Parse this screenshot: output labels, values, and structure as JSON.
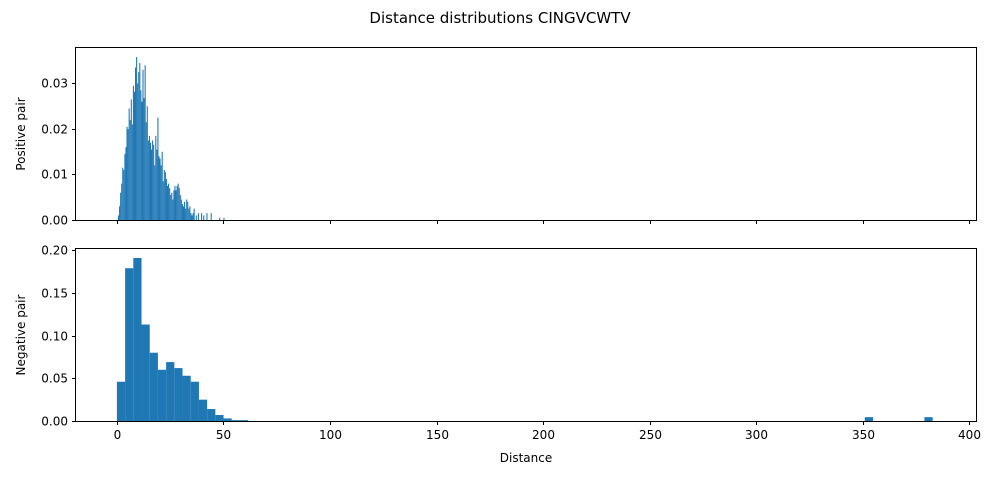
{
  "chart_data": {
    "title": "Distance distributions CINGVCWTV",
    "xlabel": "Distance",
    "panels": [
      {
        "type": "bar",
        "ylabel": "Positive pair",
        "xlim": [
          -19.2,
          403.2
        ],
        "ylim": [
          0,
          0.0378
        ],
        "yticks": [
          0.0,
          0.01,
          0.02,
          0.03
        ],
        "ytick_labels": [
          "0.00",
          "0.01",
          "0.02",
          "0.03"
        ],
        "bin_width": 0.5,
        "bins": [
          [
            0.5,
            0.001
          ],
          [
            1.0,
            0.003
          ],
          [
            1.5,
            0.006
          ],
          [
            2.0,
            0.008
          ],
          [
            2.5,
            0.0115
          ],
          [
            3.0,
            0.011
          ],
          [
            3.5,
            0.0145
          ],
          [
            4.0,
            0.016
          ],
          [
            4.5,
            0.0205
          ],
          [
            5.0,
            0.02
          ],
          [
            5.5,
            0.0245
          ],
          [
            6.0,
            0.022
          ],
          [
            6.5,
            0.0265
          ],
          [
            7.0,
            0.021
          ],
          [
            7.5,
            0.0295
          ],
          [
            8.0,
            0.0282
          ],
          [
            8.5,
            0.0335
          ],
          [
            9.0,
            0.0358
          ],
          [
            9.5,
            0.03
          ],
          [
            10.0,
            0.0325
          ],
          [
            10.5,
            0.0345
          ],
          [
            11.0,
            0.0285
          ],
          [
            11.5,
            0.026
          ],
          [
            12.0,
            0.033
          ],
          [
            12.5,
            0.0268
          ],
          [
            13.0,
            0.034
          ],
          [
            13.5,
            0.0215
          ],
          [
            14.0,
            0.025
          ],
          [
            14.5,
            0.0175
          ],
          [
            15.0,
            0.0185
          ],
          [
            15.5,
            0.017
          ],
          [
            16.0,
            0.0155
          ],
          [
            16.5,
            0.0175
          ],
          [
            17.0,
            0.0165
          ],
          [
            17.5,
            0.012
          ],
          [
            18.0,
            0.0185
          ],
          [
            18.5,
            0.0155
          ],
          [
            19.0,
            0.0225
          ],
          [
            19.5,
            0.014
          ],
          [
            20.0,
            0.0135
          ],
          [
            20.5,
            0.012
          ],
          [
            21.0,
            0.015
          ],
          [
            21.5,
            0.0085
          ],
          [
            22.0,
            0.011
          ],
          [
            22.5,
            0.0105
          ],
          [
            23.0,
            0.009
          ],
          [
            23.5,
            0.0075
          ],
          [
            24.0,
            0.008
          ],
          [
            24.5,
            0.007
          ],
          [
            25.0,
            0.0055
          ],
          [
            25.5,
            0.006
          ],
          [
            26.0,
            0.0045
          ],
          [
            26.5,
            0.0065
          ],
          [
            27.0,
            0.0075
          ],
          [
            27.5,
            0.0065
          ],
          [
            28.0,
            0.0075
          ],
          [
            28.5,
            0.008
          ],
          [
            29.0,
            0.007
          ],
          [
            29.5,
            0.0055
          ],
          [
            30.0,
            0.0045
          ],
          [
            30.5,
            0.0035
          ],
          [
            31.0,
            0.003
          ],
          [
            31.5,
            0.004
          ],
          [
            32.0,
            0.0025
          ],
          [
            32.5,
            0.0045
          ],
          [
            33.0,
            0.004
          ],
          [
            33.5,
            0.0025
          ],
          [
            34.0,
            0.003
          ],
          [
            34.5,
            0.0015
          ],
          [
            35.0,
            0.001
          ],
          [
            35.5,
            0.0015
          ],
          [
            36.0,
            0.0025
          ],
          [
            37.0,
            0.001
          ],
          [
            38.0,
            0.0015
          ],
          [
            39.5,
            0.0015
          ],
          [
            40.5,
            0.001
          ],
          [
            42.0,
            0.0015
          ],
          [
            44.0,
            0.0015
          ],
          [
            48.0,
            0.0005
          ],
          [
            50.0,
            0.0005
          ]
        ]
      },
      {
        "type": "bar",
        "ylabel": "Negative pair",
        "xlim": [
          -19.2,
          403.2
        ],
        "ylim": [
          0,
          0.2015
        ],
        "yticks": [
          0.0,
          0.05,
          0.1,
          0.15,
          0.2
        ],
        "ytick_labels": [
          "0.00",
          "0.05",
          "0.10",
          "0.15",
          "0.20"
        ],
        "xticks": [
          0,
          50,
          100,
          150,
          200,
          250,
          300,
          350,
          400
        ],
        "xtick_labels": [
          "0",
          "50",
          "100",
          "150",
          "200",
          "250",
          "300",
          "350",
          "400"
        ],
        "bin_width": 3.85,
        "bins": [
          [
            0.0,
            0.046
          ],
          [
            3.85,
            0.179
          ],
          [
            7.7,
            0.191
          ],
          [
            11.55,
            0.113
          ],
          [
            15.4,
            0.08
          ],
          [
            19.25,
            0.06
          ],
          [
            23.1,
            0.069
          ],
          [
            26.95,
            0.062
          ],
          [
            30.8,
            0.053
          ],
          [
            34.65,
            0.046
          ],
          [
            38.5,
            0.025
          ],
          [
            42.35,
            0.014
          ],
          [
            46.2,
            0.007
          ],
          [
            50.05,
            0.003
          ],
          [
            53.9,
            0.001
          ],
          [
            57.75,
            0.001
          ],
          [
            351.0,
            0.0045
          ],
          [
            379.0,
            0.0045
          ]
        ]
      }
    ]
  }
}
